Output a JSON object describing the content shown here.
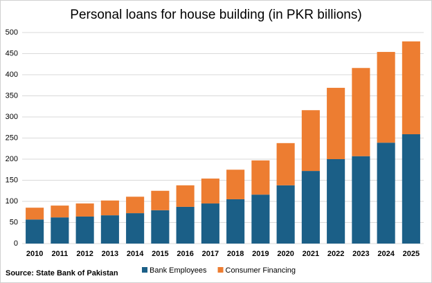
{
  "chart_data": {
    "type": "stacked_bar",
    "title": "Personal loans for house building (in PKR billions)",
    "source": "Source: State Bank of Pakistan",
    "categories": [
      "2010",
      "2011",
      "2012",
      "2013",
      "2014",
      "2015",
      "2016",
      "2017",
      "2018",
      "2019",
      "2020",
      "2021",
      "2022",
      "2023",
      "2024",
      "2025"
    ],
    "series": [
      {
        "name": "Bank Employees",
        "color": "#1b5f87",
        "values": [
          57,
          62,
          64,
          67,
          72,
          79,
          87,
          95,
          105,
          116,
          138,
          172,
          200,
          207,
          239,
          259
        ]
      },
      {
        "name": "Consumer Financing",
        "color": "#ed7d31",
        "values": [
          28,
          28,
          31,
          35,
          39,
          46,
          51,
          59,
          70,
          81,
          100,
          144,
          169,
          209,
          215,
          220
        ]
      }
    ],
    "ylim": [
      0,
      500
    ],
    "yticks": [
      0,
      50,
      100,
      150,
      200,
      250,
      300,
      350,
      400,
      450,
      500
    ],
    "grid": true,
    "legend": "bottom"
  }
}
